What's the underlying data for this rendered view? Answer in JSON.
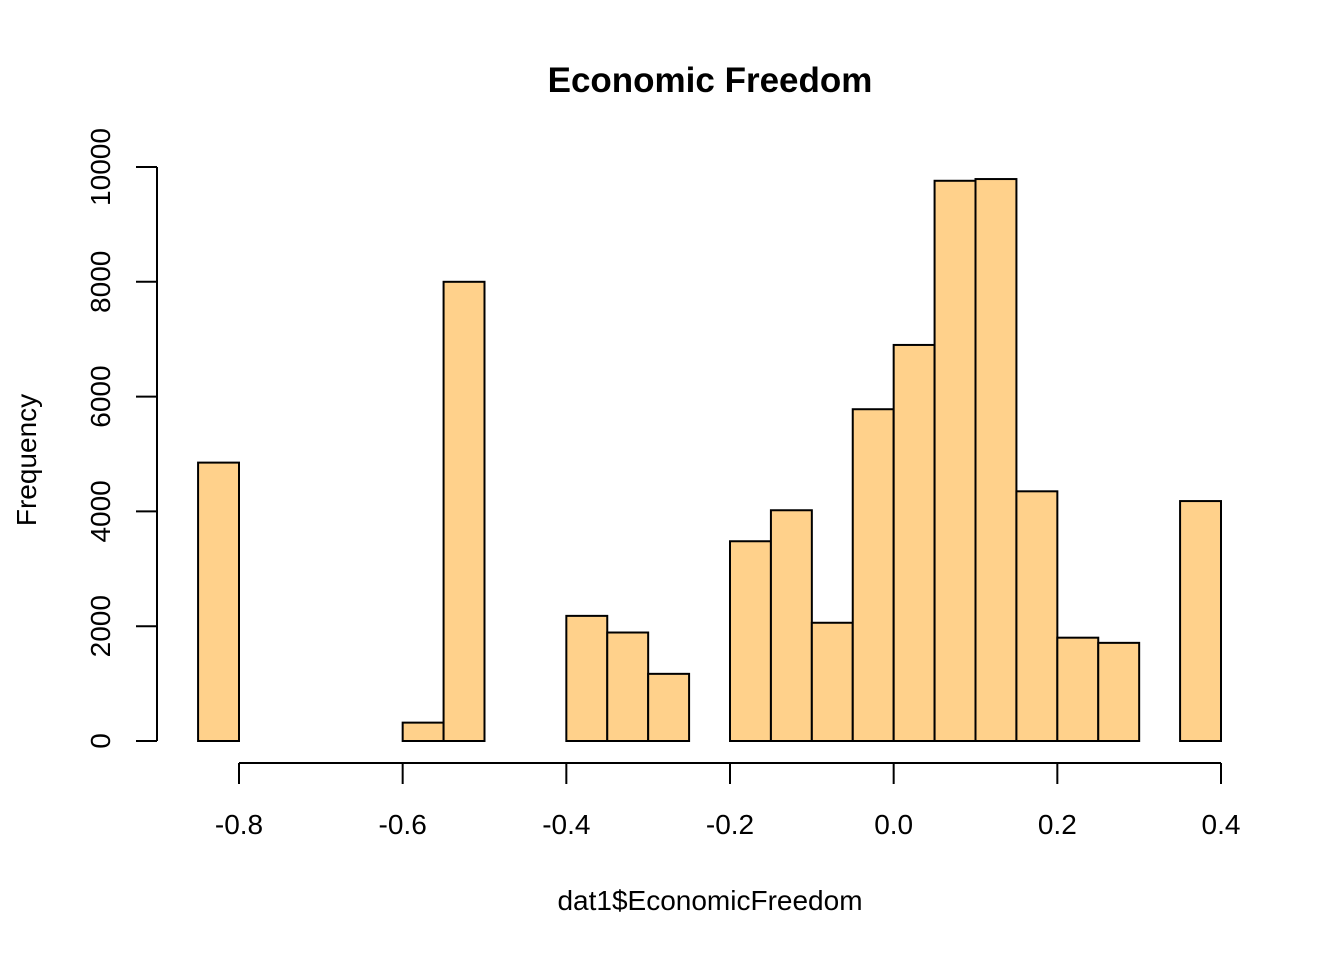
{
  "chart_data": {
    "type": "bar",
    "title": "Economic Freedom",
    "xlabel": "dat1$EconomicFreedom",
    "ylabel": "Frequency",
    "xlim": [
      -0.85,
      0.4
    ],
    "ylim": [
      0,
      10000
    ],
    "xticks": [
      -0.8,
      -0.6,
      -0.4,
      -0.2,
      0.0,
      0.2,
      0.4
    ],
    "xtick_labels": [
      "-0.8",
      "-0.6",
      "-0.4",
      "-0.2",
      "0.0",
      "0.2",
      "0.4"
    ],
    "yticks": [
      0,
      2000,
      4000,
      6000,
      8000,
      10000
    ],
    "ytick_labels": [
      "0",
      "2000",
      "4000",
      "6000",
      "8000",
      "10000"
    ],
    "bar_color": "#FFD18B",
    "grid": false,
    "bins": [
      {
        "start": -0.85,
        "end": -0.8,
        "count": 4850
      },
      {
        "start": -0.8,
        "end": -0.75,
        "count": 0
      },
      {
        "start": -0.75,
        "end": -0.7,
        "count": 0
      },
      {
        "start": -0.7,
        "end": -0.65,
        "count": 0
      },
      {
        "start": -0.65,
        "end": -0.6,
        "count": 0
      },
      {
        "start": -0.6,
        "end": -0.55,
        "count": 320
      },
      {
        "start": -0.55,
        "end": -0.5,
        "count": 8000
      },
      {
        "start": -0.5,
        "end": -0.45,
        "count": 0
      },
      {
        "start": -0.45,
        "end": -0.4,
        "count": 0
      },
      {
        "start": -0.4,
        "end": -0.35,
        "count": 2180
      },
      {
        "start": -0.35,
        "end": -0.3,
        "count": 1890
      },
      {
        "start": -0.3,
        "end": -0.25,
        "count": 1170
      },
      {
        "start": -0.25,
        "end": -0.2,
        "count": 0
      },
      {
        "start": -0.2,
        "end": -0.15,
        "count": 3480
      },
      {
        "start": -0.15,
        "end": -0.1,
        "count": 4020
      },
      {
        "start": -0.1,
        "end": -0.05,
        "count": 2060
      },
      {
        "start": -0.05,
        "end": 0.0,
        "count": 5780
      },
      {
        "start": 0.0,
        "end": 0.05,
        "count": 6900
      },
      {
        "start": 0.05,
        "end": 0.1,
        "count": 9760
      },
      {
        "start": 0.1,
        "end": 0.15,
        "count": 9790
      },
      {
        "start": 0.15,
        "end": 0.2,
        "count": 4350
      },
      {
        "start": 0.2,
        "end": 0.25,
        "count": 1800
      },
      {
        "start": 0.25,
        "end": 0.3,
        "count": 1710
      },
      {
        "start": 0.3,
        "end": 0.35,
        "count": 0
      },
      {
        "start": 0.35,
        "end": 0.4,
        "count": 4180
      }
    ]
  }
}
